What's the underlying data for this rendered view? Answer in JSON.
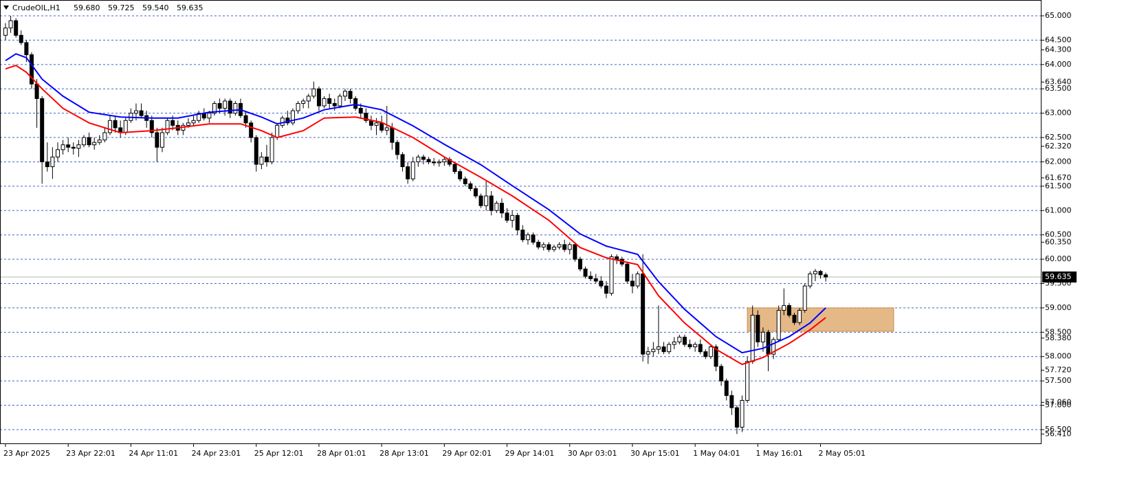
{
  "chart_data": {
    "type": "candlestick",
    "symbol": "CrudeOIL,H1",
    "header_values": [
      {
        "value": 59.68,
        "label": "59.680"
      },
      {
        "value": 59.725,
        "label": "59.725"
      },
      {
        "value": 59.54,
        "label": "59.540"
      },
      {
        "value": 59.635,
        "label": "59.635"
      }
    ],
    "xlim": [
      -1.05,
      198.3
    ],
    "ylim": [
      56.217,
      65.325
    ],
    "grid": true,
    "up_color": "#ffffff",
    "down_color": "#000000",
    "ohlc": [
      [
        64.6,
        64.85,
        64.5,
        64.75
      ],
      [
        64.75,
        65.0,
        64.65,
        64.9
      ],
      [
        64.9,
        64.95,
        64.55,
        64.6
      ],
      [
        64.6,
        64.7,
        64.4,
        64.45
      ],
      [
        64.45,
        64.5,
        64.05,
        64.2
      ],
      [
        64.2,
        64.25,
        63.5,
        63.6
      ],
      [
        63.6,
        63.7,
        62.7,
        63.3
      ],
      [
        63.3,
        63.35,
        61.55,
        62.0
      ],
      [
        62.0,
        62.4,
        61.8,
        61.9
      ],
      [
        61.9,
        62.3,
        61.65,
        62.1
      ],
      [
        62.1,
        62.4,
        62.0,
        62.25
      ],
      [
        62.25,
        62.45,
        62.15,
        62.35
      ],
      [
        62.35,
        62.5,
        62.2,
        62.3
      ],
      [
        62.3,
        62.4,
        62.15,
        62.28
      ],
      [
        62.28,
        62.45,
        62.1,
        62.35
      ],
      [
        62.35,
        62.55,
        62.3,
        62.5
      ],
      [
        62.5,
        62.6,
        62.3,
        62.35
      ],
      [
        62.35,
        62.5,
        62.25,
        62.4
      ],
      [
        62.4,
        62.55,
        62.35,
        62.45
      ],
      [
        62.45,
        62.7,
        62.4,
        62.6
      ],
      [
        62.6,
        62.95,
        62.55,
        62.85
      ],
      [
        62.85,
        62.95,
        62.6,
        62.7
      ],
      [
        62.7,
        62.85,
        62.5,
        62.6
      ],
      [
        62.6,
        62.9,
        62.55,
        62.85
      ],
      [
        62.85,
        63.1,
        62.8,
        63.0
      ],
      [
        63.0,
        63.2,
        62.85,
        63.05
      ],
      [
        63.05,
        63.2,
        62.9,
        62.95
      ],
      [
        62.95,
        63.05,
        62.7,
        62.85
      ],
      [
        62.85,
        62.95,
        62.5,
        62.6
      ],
      [
        62.6,
        62.7,
        62.0,
        62.3
      ],
      [
        62.3,
        62.7,
        62.2,
        62.6
      ],
      [
        62.6,
        62.9,
        62.55,
        62.85
      ],
      [
        62.85,
        62.95,
        62.65,
        62.75
      ],
      [
        62.75,
        62.85,
        62.55,
        62.65
      ],
      [
        62.65,
        62.8,
        62.55,
        62.75
      ],
      [
        62.75,
        62.9,
        62.7,
        62.8
      ],
      [
        62.8,
        62.95,
        62.75,
        62.85
      ],
      [
        62.85,
        63.05,
        62.8,
        63.0
      ],
      [
        63.0,
        63.1,
        62.85,
        62.9
      ],
      [
        62.9,
        63.05,
        62.8,
        63.0
      ],
      [
        63.0,
        63.25,
        62.95,
        63.2
      ],
      [
        63.2,
        63.3,
        63.0,
        63.1
      ],
      [
        63.1,
        63.3,
        62.95,
        63.25
      ],
      [
        63.25,
        63.3,
        62.9,
        63.0
      ],
      [
        63.0,
        63.25,
        62.95,
        63.2
      ],
      [
        63.2,
        63.3,
        62.9,
        62.95
      ],
      [
        62.95,
        63.05,
        62.7,
        62.8
      ],
      [
        62.8,
        62.85,
        62.4,
        62.5
      ],
      [
        62.5,
        62.55,
        61.8,
        61.95
      ],
      [
        61.95,
        62.2,
        61.85,
        62.1
      ],
      [
        62.1,
        62.35,
        61.9,
        62.0
      ],
      [
        62.0,
        62.6,
        61.95,
        62.5
      ],
      [
        62.5,
        62.8,
        62.45,
        62.75
      ],
      [
        62.75,
        62.95,
        62.7,
        62.9
      ],
      [
        62.9,
        63.05,
        62.75,
        62.8
      ],
      [
        62.8,
        63.1,
        62.75,
        63.05
      ],
      [
        63.05,
        63.25,
        63.0,
        63.2
      ],
      [
        63.2,
        63.3,
        63.1,
        63.25
      ],
      [
        63.25,
        63.4,
        63.1,
        63.35
      ],
      [
        63.35,
        63.65,
        63.3,
        63.5
      ],
      [
        63.5,
        63.55,
        63.05,
        63.15
      ],
      [
        63.15,
        63.35,
        63.1,
        63.3
      ],
      [
        63.3,
        63.4,
        63.1,
        63.2
      ],
      [
        63.2,
        63.3,
        63.05,
        63.15
      ],
      [
        63.15,
        63.4,
        63.1,
        63.35
      ],
      [
        63.35,
        63.5,
        63.25,
        63.45
      ],
      [
        63.45,
        63.5,
        63.2,
        63.3
      ],
      [
        63.3,
        63.35,
        63.05,
        63.1
      ],
      [
        63.1,
        63.2,
        62.9,
        63.0
      ],
      [
        63.0,
        63.1,
        62.8,
        62.85
      ],
      [
        62.85,
        62.95,
        62.65,
        62.75
      ],
      [
        62.75,
        62.9,
        62.55,
        62.8
      ],
      [
        62.8,
        62.95,
        62.6,
        62.65
      ],
      [
        62.65,
        63.15,
        62.55,
        62.7
      ],
      [
        62.7,
        62.8,
        62.25,
        62.4
      ],
      [
        62.4,
        62.45,
        62.05,
        62.15
      ],
      [
        62.15,
        62.2,
        61.8,
        61.9
      ],
      [
        61.9,
        62.0,
        61.55,
        61.65
      ],
      [
        61.65,
        62.1,
        61.6,
        62.0
      ],
      [
        62.0,
        62.15,
        61.9,
        62.1
      ],
      [
        62.1,
        62.15,
        61.95,
        62.05
      ],
      [
        62.05,
        62.1,
        61.95,
        62.0
      ],
      [
        62.0,
        62.08,
        61.92,
        61.98
      ],
      [
        61.98,
        62.05,
        61.9,
        62.0
      ],
      [
        62.0,
        62.1,
        61.92,
        62.05
      ],
      [
        62.05,
        62.1,
        61.9,
        61.95
      ],
      [
        61.95,
        62.0,
        61.75,
        61.8
      ],
      [
        61.8,
        61.85,
        61.6,
        61.65
      ],
      [
        61.65,
        61.7,
        61.5,
        61.55
      ],
      [
        61.55,
        61.6,
        61.4,
        61.45
      ],
      [
        61.45,
        61.5,
        61.25,
        61.3
      ],
      [
        61.3,
        61.35,
        61.05,
        61.1
      ],
      [
        61.1,
        61.6,
        61.0,
        61.3
      ],
      [
        61.3,
        61.4,
        60.9,
        61.0
      ],
      [
        61.0,
        61.2,
        60.95,
        61.15
      ],
      [
        61.15,
        61.25,
        60.85,
        60.95
      ],
      [
        60.95,
        61.05,
        60.75,
        60.8
      ],
      [
        60.8,
        61.0,
        60.65,
        60.9
      ],
      [
        60.9,
        60.95,
        60.5,
        60.6
      ],
      [
        60.6,
        60.7,
        60.35,
        60.4
      ],
      [
        60.4,
        60.55,
        60.3,
        60.5
      ],
      [
        60.5,
        60.55,
        60.3,
        60.35
      ],
      [
        60.35,
        60.4,
        60.2,
        60.25
      ],
      [
        60.25,
        60.35,
        60.18,
        60.3
      ],
      [
        60.3,
        60.35,
        60.15,
        60.2
      ],
      [
        60.2,
        60.3,
        60.15,
        60.25
      ],
      [
        60.25,
        60.35,
        60.2,
        60.3
      ],
      [
        60.3,
        60.4,
        60.15,
        60.2
      ],
      [
        60.2,
        60.35,
        60.1,
        60.3
      ],
      [
        60.3,
        60.35,
        59.95,
        60.0
      ],
      [
        60.0,
        60.05,
        59.75,
        59.8
      ],
      [
        59.8,
        59.85,
        59.6,
        59.65
      ],
      [
        59.65,
        59.75,
        59.55,
        59.6
      ],
      [
        59.6,
        59.7,
        59.5,
        59.55
      ],
      [
        59.55,
        59.65,
        59.4,
        59.45
      ],
      [
        59.45,
        59.55,
        59.2,
        59.3
      ],
      [
        59.3,
        60.1,
        59.25,
        60.05
      ],
      [
        60.05,
        60.1,
        59.9,
        60.0
      ],
      [
        60.0,
        60.05,
        59.85,
        59.9
      ],
      [
        59.9,
        59.95,
        59.5,
        59.55
      ],
      [
        59.55,
        59.7,
        59.3,
        59.45
      ],
      [
        59.45,
        59.75,
        59.4,
        59.7
      ],
      [
        59.7,
        60.1,
        57.9,
        58.05
      ],
      [
        58.05,
        58.2,
        57.85,
        58.1
      ],
      [
        58.1,
        58.3,
        58.0,
        58.15
      ],
      [
        58.15,
        59.05,
        58.05,
        58.2
      ],
      [
        58.2,
        58.3,
        58.05,
        58.1
      ],
      [
        58.1,
        58.3,
        58.05,
        58.25
      ],
      [
        58.25,
        58.4,
        58.15,
        58.3
      ],
      [
        58.3,
        58.45,
        58.25,
        58.4
      ],
      [
        58.4,
        58.45,
        58.2,
        58.25
      ],
      [
        58.25,
        58.35,
        58.15,
        58.2
      ],
      [
        58.2,
        58.3,
        58.1,
        58.25
      ],
      [
        58.25,
        58.35,
        58.05,
        58.1
      ],
      [
        58.1,
        58.15,
        57.95,
        58.0
      ],
      [
        58.0,
        58.25,
        57.95,
        58.2
      ],
      [
        58.2,
        58.25,
        57.7,
        57.8
      ],
      [
        57.8,
        57.85,
        57.4,
        57.5
      ],
      [
        57.5,
        57.55,
        57.1,
        57.2
      ],
      [
        57.2,
        57.3,
        56.8,
        56.95
      ],
      [
        56.95,
        57.0,
        56.41,
        56.55
      ],
      [
        56.55,
        57.2,
        56.45,
        57.1
      ],
      [
        57.1,
        58.0,
        57.05,
        57.9
      ],
      [
        57.9,
        59.05,
        57.85,
        58.85
      ],
      [
        58.85,
        58.95,
        58.2,
        58.3
      ],
      [
        58.3,
        58.6,
        58.1,
        58.5
      ],
      [
        58.5,
        58.55,
        57.7,
        58.05
      ],
      [
        58.05,
        58.4,
        57.95,
        58.35
      ],
      [
        58.35,
        59.05,
        58.3,
        58.95
      ],
      [
        58.95,
        59.4,
        58.85,
        59.05
      ],
      [
        59.05,
        59.1,
        58.8,
        58.85
      ],
      [
        58.85,
        58.9,
        58.65,
        58.7
      ],
      [
        58.7,
        59.0,
        58.65,
        58.95
      ],
      [
        58.95,
        59.5,
        58.9,
        59.45
      ],
      [
        59.45,
        59.75,
        59.4,
        59.7
      ],
      [
        59.7,
        59.8,
        59.55,
        59.75
      ],
      [
        59.75,
        59.78,
        59.6,
        59.68
      ],
      [
        59.68,
        59.725,
        59.54,
        59.635
      ]
    ],
    "series": [
      {
        "color": "#0000ff",
        "x": [
          0,
          2,
          4,
          7,
          11,
          16,
          22,
          28,
          33,
          39,
          45,
          49,
          52,
          57,
          61,
          67,
          72,
          78,
          84,
          91,
          97,
          104,
          110,
          115,
          121,
          125,
          130,
          136,
          141,
          145,
          150,
          154,
          157
        ],
        "values": [
          64.08,
          64.22,
          64.14,
          63.7,
          63.35,
          63.02,
          62.92,
          62.9,
          62.9,
          63.02,
          63.07,
          62.92,
          62.78,
          62.9,
          63.07,
          63.18,
          63.07,
          62.74,
          62.36,
          61.94,
          61.51,
          61.02,
          60.52,
          60.27,
          60.1,
          59.54,
          58.97,
          58.41,
          58.08,
          58.17,
          58.41,
          58.69,
          59.0
        ]
      },
      {
        "color": "#ff0000",
        "x": [
          0,
          2,
          4,
          7,
          11,
          16,
          22,
          28,
          33,
          39,
          45,
          49,
          52,
          57,
          61,
          67,
          72,
          78,
          84,
          91,
          97,
          104,
          110,
          115,
          121,
          125,
          130,
          136,
          141,
          145,
          150,
          154,
          157
        ],
        "values": [
          63.91,
          63.98,
          63.84,
          63.5,
          63.1,
          62.8,
          62.6,
          62.64,
          62.7,
          62.78,
          62.78,
          62.64,
          62.5,
          62.64,
          62.9,
          62.92,
          62.81,
          62.5,
          62.1,
          61.68,
          61.3,
          60.8,
          60.24,
          60.03,
          59.89,
          59.25,
          58.69,
          58.15,
          57.84,
          57.98,
          58.27,
          58.55,
          58.8
        ]
      }
    ],
    "zone": {
      "x": [
        142,
        170
      ],
      "ylim": [
        58.52,
        59.0
      ],
      "color": "#e0ad72"
    },
    "current_price": {
      "value": 59.635,
      "label": "59.635"
    },
    "yticks": [
      {
        "value": 65,
        "label": "65.000"
      },
      {
        "value": 64.5,
        "label": "64.500"
      },
      {
        "value": 64,
        "label": "64.000"
      },
      {
        "value": 63.5,
        "label": "63.500"
      },
      {
        "value": 63,
        "label": "63.000"
      },
      {
        "value": 62.5,
        "label": "62.500"
      },
      {
        "value": 62,
        "label": "62.000"
      },
      {
        "value": 61.5,
        "label": "61.500"
      },
      {
        "value": 61,
        "label": "61.000"
      },
      {
        "value": 60.5,
        "label": "60.500"
      },
      {
        "value": 60,
        "label": "60.000"
      },
      {
        "value": 59.5,
        "label": "59.500"
      },
      {
        "value": 59,
        "label": "59.000"
      },
      {
        "value": 58.5,
        "label": "58.500"
      },
      {
        "value": 58,
        "label": "58.000"
      },
      {
        "value": 57.5,
        "label": "57.500"
      },
      {
        "value": 57,
        "label": "57.000"
      },
      {
        "value": 56.5,
        "label": "56.500"
      }
    ],
    "ylabels_extra": [
      {
        "value": 64.3,
        "label": "64.300"
      },
      {
        "value": 63.64,
        "label": "63.640"
      },
      {
        "value": 62.32,
        "label": "62.320"
      },
      {
        "value": 61.67,
        "label": "61.670"
      },
      {
        "value": 60.35,
        "label": "60.350"
      },
      {
        "value": 58.38,
        "label": "58.380"
      },
      {
        "value": 57.72,
        "label": "57.720"
      },
      {
        "value": 57.06,
        "label": "57.060"
      },
      {
        "value": 56.41,
        "label": "56.410"
      }
    ],
    "xticks": [
      {
        "value": 0,
        "label": "23 Apr 2025"
      },
      {
        "value": 12,
        "label": "23 Apr 22:01"
      },
      {
        "value": 24,
        "label": "24 Apr 11:01"
      },
      {
        "value": 36,
        "label": "24 Apr 23:01"
      },
      {
        "value": 48,
        "label": "25 Apr 12:01"
      },
      {
        "value": 60,
        "label": "28 Apr 01:01"
      },
      {
        "value": 72,
        "label": "28 Apr 13:01"
      },
      {
        "value": 84,
        "label": "29 Apr 02:01"
      },
      {
        "value": 96,
        "label": "29 Apr 14:01"
      },
      {
        "value": 108,
        "label": "30 Apr 03:01"
      },
      {
        "value": 120,
        "label": "30 Apr 15:01"
      },
      {
        "value": 132,
        "label": "1 May 04:01"
      },
      {
        "value": 144,
        "label": "1 May 16:01"
      },
      {
        "value": 156,
        "label": "2 May 05:01"
      }
    ]
  }
}
